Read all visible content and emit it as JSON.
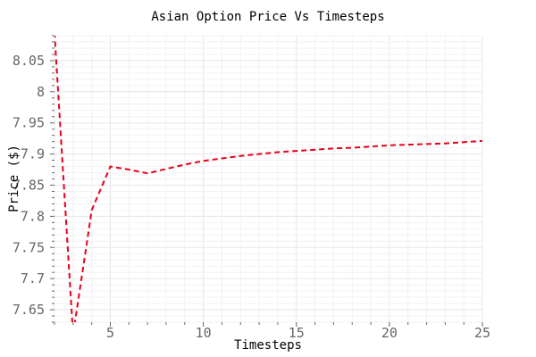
{
  "chart_data": {
    "type": "line",
    "title": "Asian Option Price Vs Timesteps",
    "xlabel": "Timesteps",
    "ylabel": "Price ($)",
    "xlim": [
      2,
      25
    ],
    "ylim": [
      7.63,
      8.09
    ],
    "x_ticks": [
      5,
      10,
      15,
      20,
      25
    ],
    "y_ticks": [
      7.65,
      7.7,
      7.75,
      7.8,
      7.85,
      7.9,
      7.95,
      8,
      8.05
    ],
    "grid": true,
    "series": [
      {
        "color": "#e8001c",
        "dashed": true,
        "x": [
          2,
          3,
          4,
          5,
          6,
          7,
          8,
          9,
          10,
          11,
          12,
          13,
          14,
          15,
          16,
          17,
          18,
          19,
          20,
          21,
          22,
          23,
          24,
          25
        ],
        "y": [
          8.095,
          7.61,
          7.81,
          7.88,
          7.875,
          7.869,
          7.876,
          7.883,
          7.889,
          7.893,
          7.897,
          7.9,
          7.903,
          7.905,
          7.907,
          7.909,
          7.91,
          7.912,
          7.914,
          7.915,
          7.916,
          7.917,
          7.919,
          7.921
        ]
      }
    ]
  }
}
